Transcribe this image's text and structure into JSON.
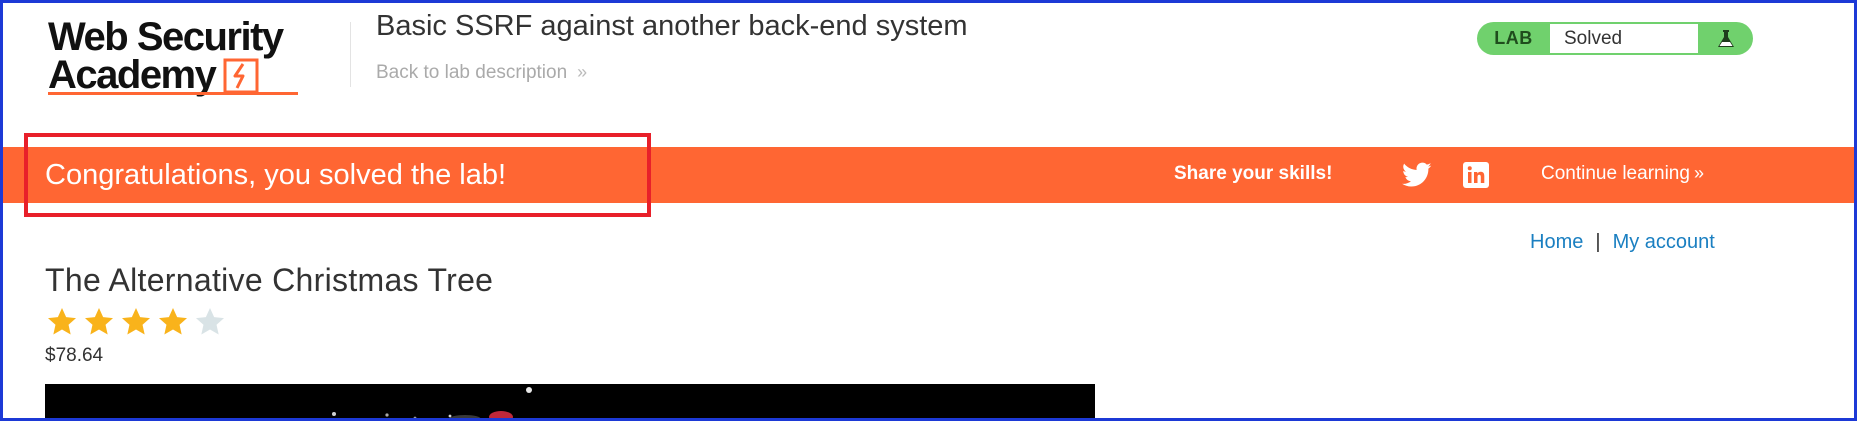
{
  "header": {
    "logo": {
      "line1": "Web Security",
      "line2": "Academy"
    },
    "lab_title": "Basic SSRF against another back-end system",
    "back_link": "Back to lab description",
    "back_link_icon": "double-chevron-right-icon",
    "lab_status": {
      "badge": "LAB",
      "status": "Solved",
      "icon": "flask-icon",
      "badge_color": "#70d16d"
    }
  },
  "banner": {
    "message": "Congratulations, you solved the lab!",
    "share_label": "Share your skills!",
    "twitter_icon": "twitter-icon",
    "linkedin_icon": "linkedin-icon",
    "continue_label": "Continue learning",
    "background_color": "#ff6633"
  },
  "nav": {
    "home": "Home",
    "separator": "|",
    "my_account": "My account"
  },
  "product": {
    "title": "The Alternative Christmas Tree",
    "rating": 4,
    "rating_max": 5,
    "price": "$78.64"
  },
  "colors": {
    "accent": "#ff6633",
    "link": "#1a7fc1",
    "star_filled": "#f9b31b",
    "star_empty": "#d9e3e6",
    "highlight": "#e8202a"
  }
}
